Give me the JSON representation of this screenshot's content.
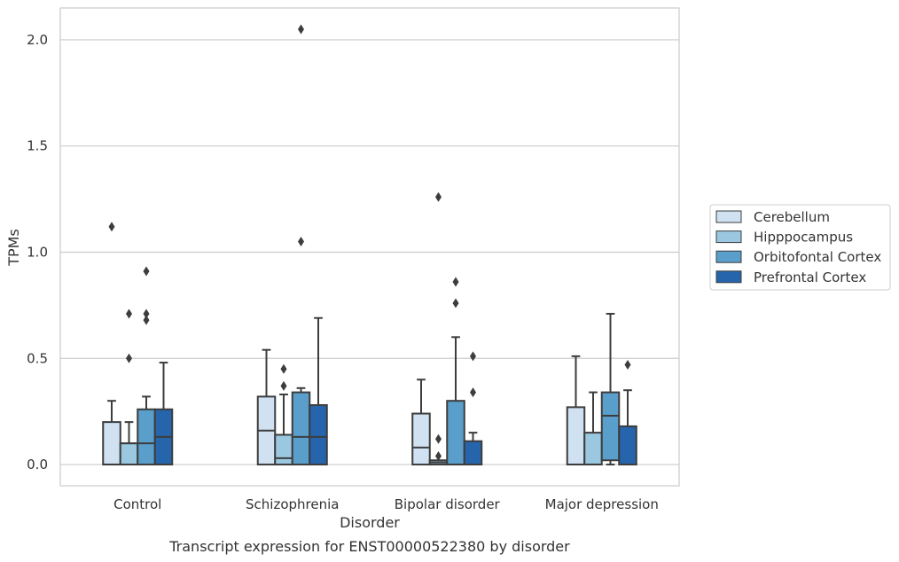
{
  "caption": "Transcript expression for ENST00000522380 by disorder",
  "chart_data": {
    "type": "box",
    "title": "",
    "xlabel": "Disorder",
    "ylabel": "TPMs",
    "ylim": [
      -0.1,
      2.15
    ],
    "yticks": [
      0.0,
      0.5,
      1.0,
      1.5,
      2.0
    ],
    "ytick_labels": [
      "0.0",
      "0.5",
      "1.0",
      "1.5",
      "2.0"
    ],
    "grid": "horizontal",
    "legend_position": "right",
    "categories": [
      "Control",
      "Schizophrenia",
      "Bipolar disorder",
      "Major depression"
    ],
    "series": [
      {
        "name": "Cerebellum",
        "color": "#d0e1f2",
        "boxes": [
          {
            "whislo": 0.0,
            "q1": 0.0,
            "med": 0.0,
            "q3": 0.2,
            "whishi": 0.3,
            "fliers": [
              1.12
            ]
          },
          {
            "whislo": 0.0,
            "q1": 0.0,
            "med": 0.16,
            "q3": 0.32,
            "whishi": 0.54,
            "fliers": []
          },
          {
            "whislo": 0.0,
            "q1": 0.0,
            "med": 0.08,
            "q3": 0.24,
            "whishi": 0.4,
            "fliers": []
          },
          {
            "whislo": 0.0,
            "q1": 0.0,
            "med": 0.0,
            "q3": 0.27,
            "whishi": 0.51,
            "fliers": []
          }
        ]
      },
      {
        "name": "Hipppocampus",
        "color": "#9ac8e0",
        "boxes": [
          {
            "whislo": 0.0,
            "q1": 0.0,
            "med": 0.1,
            "q3": 0.1,
            "whishi": 0.2,
            "fliers": [
              0.5,
              0.71
            ]
          },
          {
            "whislo": 0.0,
            "q1": 0.0,
            "med": 0.03,
            "q3": 0.14,
            "whishi": 0.33,
            "fliers": [
              0.37,
              0.45
            ]
          },
          {
            "whislo": 0.0,
            "q1": 0.0,
            "med": 0.01,
            "q3": 0.02,
            "whishi": 0.02,
            "fliers": [
              0.04,
              0.12,
              1.26
            ]
          },
          {
            "whislo": 0.0,
            "q1": 0.0,
            "med": 0.0,
            "q3": 0.15,
            "whishi": 0.34,
            "fliers": []
          }
        ]
      },
      {
        "name": "Orbitofontal Cortex",
        "color": "#5a9ecb",
        "boxes": [
          {
            "whislo": 0.0,
            "q1": 0.0,
            "med": 0.1,
            "q3": 0.26,
            "whishi": 0.32,
            "fliers": [
              0.68,
              0.71,
              0.91
            ]
          },
          {
            "whislo": 0.0,
            "q1": 0.0,
            "med": 0.13,
            "q3": 0.34,
            "whishi": 0.36,
            "fliers": [
              1.05,
              2.05
            ]
          },
          {
            "whislo": 0.0,
            "q1": 0.0,
            "med": 0.0,
            "q3": 0.3,
            "whishi": 0.6,
            "fliers": [
              0.76,
              0.86
            ]
          },
          {
            "whislo": 0.0,
            "q1": 0.02,
            "med": 0.23,
            "q3": 0.34,
            "whishi": 0.71,
            "fliers": []
          }
        ]
      },
      {
        "name": "Prefrontal Cortex",
        "color": "#2665ab",
        "boxes": [
          {
            "whislo": 0.0,
            "q1": 0.0,
            "med": 0.13,
            "q3": 0.26,
            "whishi": 0.48,
            "fliers": []
          },
          {
            "whislo": 0.0,
            "q1": 0.0,
            "med": 0.13,
            "q3": 0.28,
            "whishi": 0.69,
            "fliers": []
          },
          {
            "whislo": 0.0,
            "q1": 0.0,
            "med": 0.0,
            "q3": 0.11,
            "whishi": 0.15,
            "fliers": [
              0.34,
              0.51
            ]
          },
          {
            "whislo": 0.0,
            "q1": 0.0,
            "med": 0.0,
            "q3": 0.18,
            "whishi": 0.35,
            "fliers": [
              0.47
            ]
          }
        ]
      }
    ]
  }
}
